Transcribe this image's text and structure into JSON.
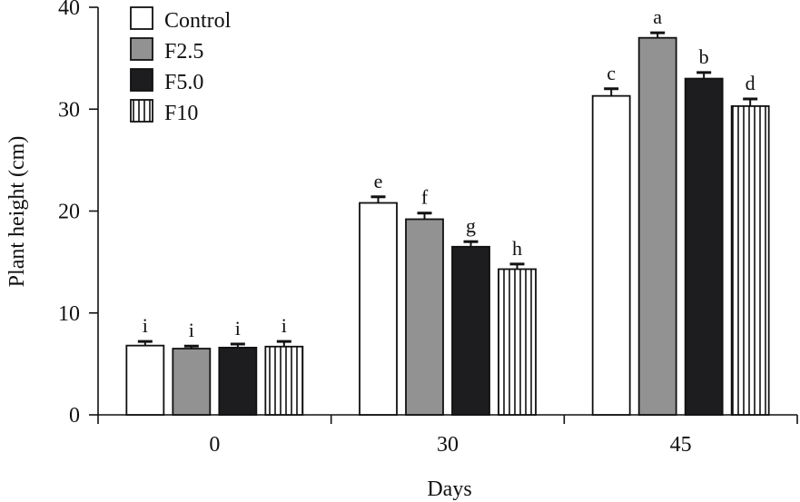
{
  "chart_data": {
    "type": "bar",
    "title": "",
    "xlabel": "Days",
    "ylabel": "Plant height (cm)",
    "ylim": [
      0,
      40
    ],
    "yticks": [
      "0",
      "10",
      "20",
      "30",
      "40"
    ],
    "categories": [
      "0",
      "30",
      "45"
    ],
    "grid": false,
    "legend_position": "top-left",
    "series": [
      {
        "name": "Control",
        "values": [
          6.8,
          20.8,
          31.3
        ],
        "errors": [
          0.4,
          0.6,
          0.7
        ],
        "labels": [
          "i",
          "e",
          "c"
        ],
        "fill": "#ffffff",
        "pattern": "solid"
      },
      {
        "name": "F2.5",
        "values": [
          6.5,
          19.2,
          37.0
        ],
        "errors": [
          0.25,
          0.6,
          0.5
        ],
        "labels": [
          "i",
          "f",
          "a"
        ],
        "fill": "#929292",
        "pattern": "solid"
      },
      {
        "name": "F5.0",
        "values": [
          6.6,
          16.5,
          33.0
        ],
        "errors": [
          0.35,
          0.5,
          0.6
        ],
        "labels": [
          "i",
          "g",
          "b"
        ],
        "fill": "#1d1d1f",
        "pattern": "solid"
      },
      {
        "name": "F10",
        "values": [
          6.7,
          14.3,
          30.3
        ],
        "errors": [
          0.5,
          0.5,
          0.7
        ],
        "labels": [
          "i",
          "h",
          "d"
        ],
        "fill": "#ffffff",
        "pattern": "vertical-stripes"
      }
    ]
  }
}
